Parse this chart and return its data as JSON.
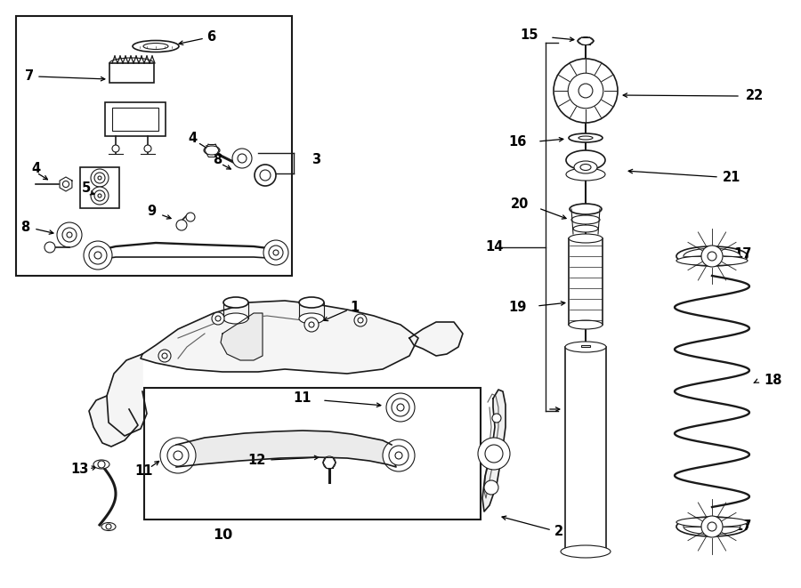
{
  "bg_color": "#ffffff",
  "line_color": "#1a1a1a",
  "fig_width": 9.0,
  "fig_height": 6.61,
  "dpi": 100,
  "labels": {
    "1": [
      398,
      348,
      400,
      358
    ],
    "2": [
      628,
      602,
      580,
      590
    ],
    "3": [
      347,
      183,
      330,
      183
    ],
    "4a": [
      40,
      193,
      53,
      206
    ],
    "4b": [
      215,
      158,
      237,
      174
    ],
    "5": [
      97,
      213,
      112,
      220
    ],
    "6": [
      232,
      45,
      197,
      54
    ],
    "7": [
      28,
      88,
      122,
      91
    ],
    "8a": [
      244,
      183,
      265,
      197
    ],
    "8b": [
      28,
      258,
      62,
      262
    ],
    "9": [
      170,
      240,
      195,
      247
    ],
    "10": [
      248,
      602,
      0,
      0
    ],
    "11a": [
      162,
      530,
      178,
      518
    ],
    "11b": [
      350,
      450,
      415,
      458
    ],
    "12": [
      288,
      517,
      307,
      510
    ],
    "13": [
      100,
      530,
      118,
      524
    ],
    "14": [
      545,
      280,
      610,
      280
    ],
    "15": [
      605,
      43,
      647,
      46
    ],
    "16": [
      592,
      163,
      635,
      160
    ],
    "17a": [
      822,
      287,
      812,
      295
    ],
    "17b": [
      822,
      595,
      808,
      588
    ],
    "18": [
      855,
      432,
      843,
      435
    ],
    "19": [
      592,
      348,
      628,
      342
    ],
    "20": [
      594,
      232,
      632,
      248
    ],
    "21": [
      812,
      202,
      706,
      195
    ],
    "22": [
      835,
      110,
      704,
      108
    ]
  }
}
